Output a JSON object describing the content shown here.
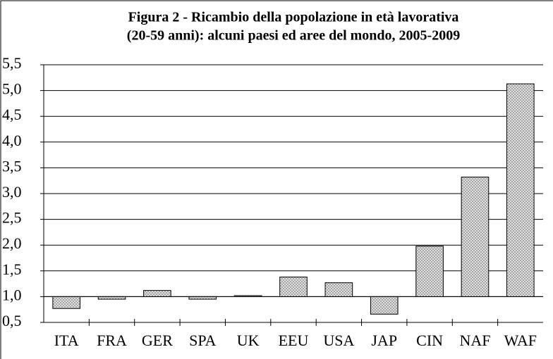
{
  "chart_data": {
    "type": "bar",
    "title": [
      "Figura 2 - Ricambio della popolazione in età lavorativa",
      "(20-59 anni): alcuni paesi ed aree del mondo, 2005-2009"
    ],
    "categories": [
      "ITA",
      "FRA",
      "GER",
      "SPA",
      "UK",
      "EEU",
      "USA",
      "JAP",
      "CIN",
      "NAF",
      "WAF"
    ],
    "values": [
      0.77,
      0.95,
      1.12,
      0.95,
      1.02,
      1.38,
      1.27,
      0.66,
      1.98,
      3.32,
      5.13
    ],
    "color": "#a6a6a6",
    "x_axis_crosses": 1,
    "ylim": [
      0.5,
      5.5
    ],
    "yticks": [
      {
        "value": 0.5,
        "label": "0,5"
      },
      {
        "value": 1,
        "label": "1,0"
      },
      {
        "value": 1.5,
        "label": "1,5"
      },
      {
        "value": 2,
        "label": "2,0"
      },
      {
        "value": 2.5,
        "label": "2,5"
      },
      {
        "value": 3,
        "label": "3,0"
      },
      {
        "value": 3.5,
        "label": "3,5"
      },
      {
        "value": 4,
        "label": "4,0"
      },
      {
        "value": 4.5,
        "label": "4,5"
      },
      {
        "value": 5,
        "label": "5,0"
      },
      {
        "value": 5.5,
        "label": "5,5"
      }
    ],
    "grid": true
  }
}
